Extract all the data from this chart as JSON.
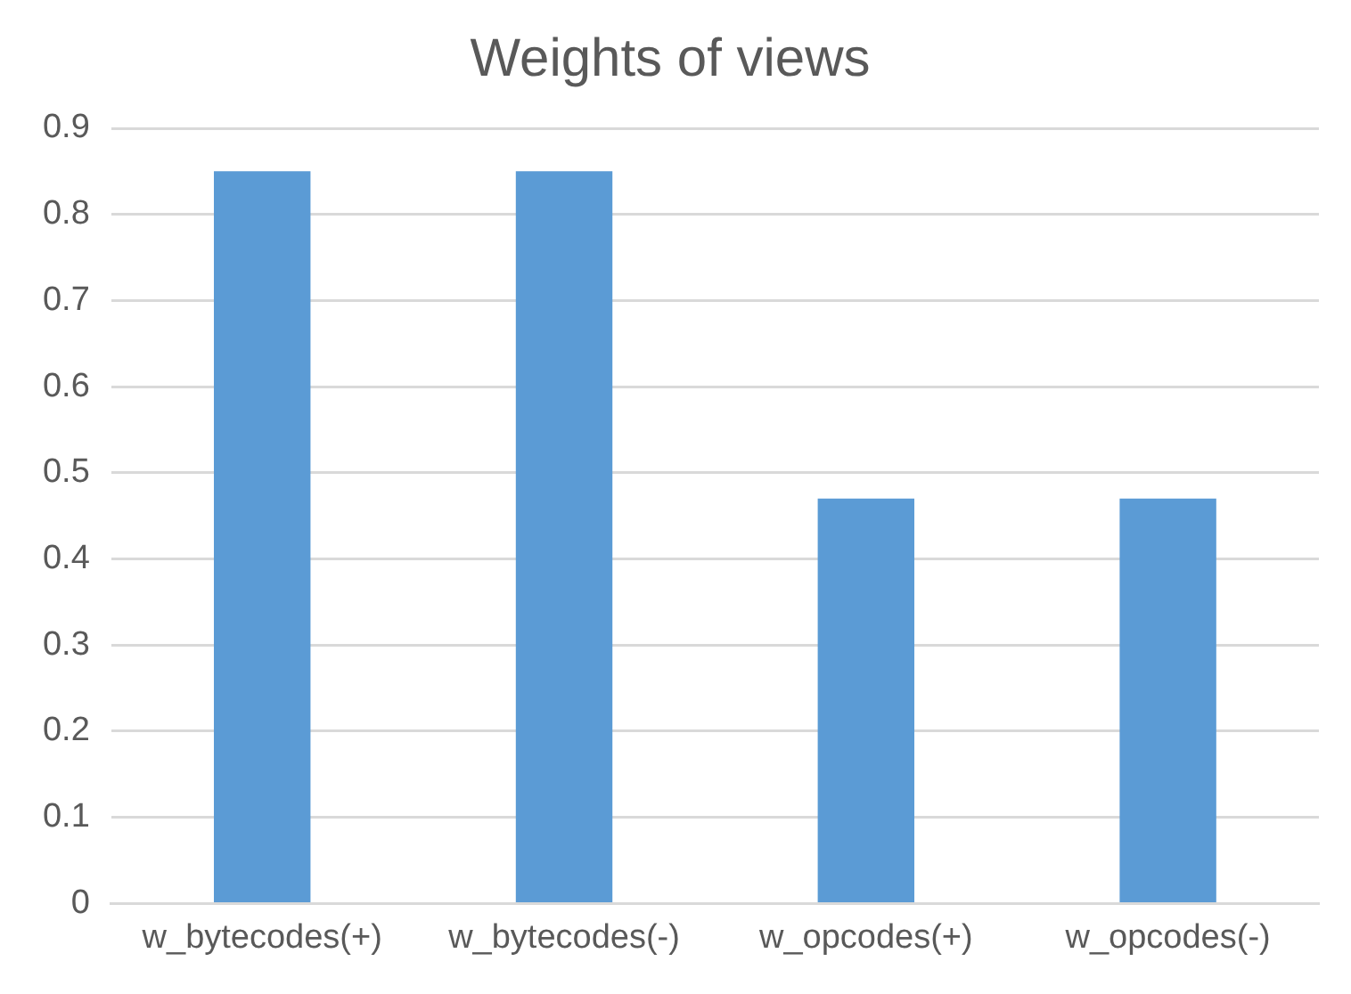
{
  "chart_data": {
    "type": "bar",
    "title": "Weights of views",
    "categories": [
      "w_bytecodes(+)",
      "w_bytecodes(-)",
      "w_opcodes(+)",
      "w_opcodes(-)"
    ],
    "values": [
      0.85,
      0.85,
      0.47,
      0.47
    ],
    "color": "#5b9bd5",
    "ylim": [
      0,
      0.9
    ],
    "yticks": [
      0,
      0.1,
      0.2,
      0.3,
      0.4,
      0.5,
      0.6,
      0.7,
      0.8,
      0.9
    ],
    "grid": "y",
    "legend": false
  }
}
